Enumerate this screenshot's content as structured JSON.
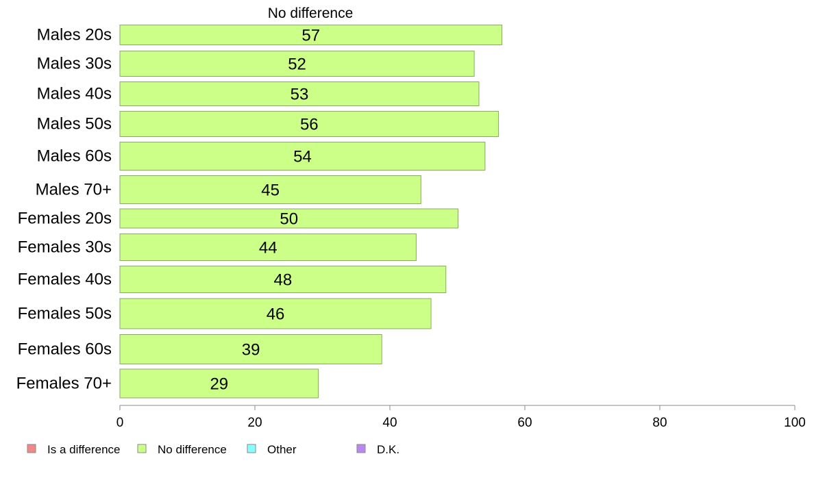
{
  "chart_data": {
    "type": "bar",
    "orientation": "horizontal",
    "title": "No difference",
    "categories": [
      "Males 20s",
      "Males 30s",
      "Males 40s",
      "Males 50s",
      "Males 60s",
      "Males 70+",
      "Females 20s",
      "Females 30s",
      "Females 40s",
      "Females 50s",
      "Females 60s",
      "Females 70+"
    ],
    "series": [
      {
        "name": "No difference",
        "color": "#ccff88",
        "values": [
          56.6,
          52.5,
          53.2,
          56.1,
          54.1,
          44.6,
          50.1,
          43.9,
          48.3,
          46.1,
          38.8,
          29.4
        ],
        "labels": [
          "57",
          "52",
          "53",
          "56",
          "54",
          "45",
          "50",
          "44",
          "48",
          "46",
          "39",
          "29"
        ]
      }
    ],
    "xlim": [
      0,
      100
    ],
    "xticks": [
      "0",
      "20",
      "40",
      "60",
      "80",
      "100"
    ],
    "xlabel": "",
    "ylabel": "",
    "grid": false,
    "legend": {
      "placement": "bottom-left",
      "entries": [
        {
          "label": "Is a difference",
          "color": "#f08888"
        },
        {
          "label": "No difference",
          "color": "#ccff88"
        },
        {
          "label": "Other",
          "color": "#88ffff"
        },
        {
          "label": "D.K.",
          "color": "#bb88ee"
        }
      ]
    },
    "bar_border_color": "#88aa66",
    "axis_color": "#888888"
  }
}
